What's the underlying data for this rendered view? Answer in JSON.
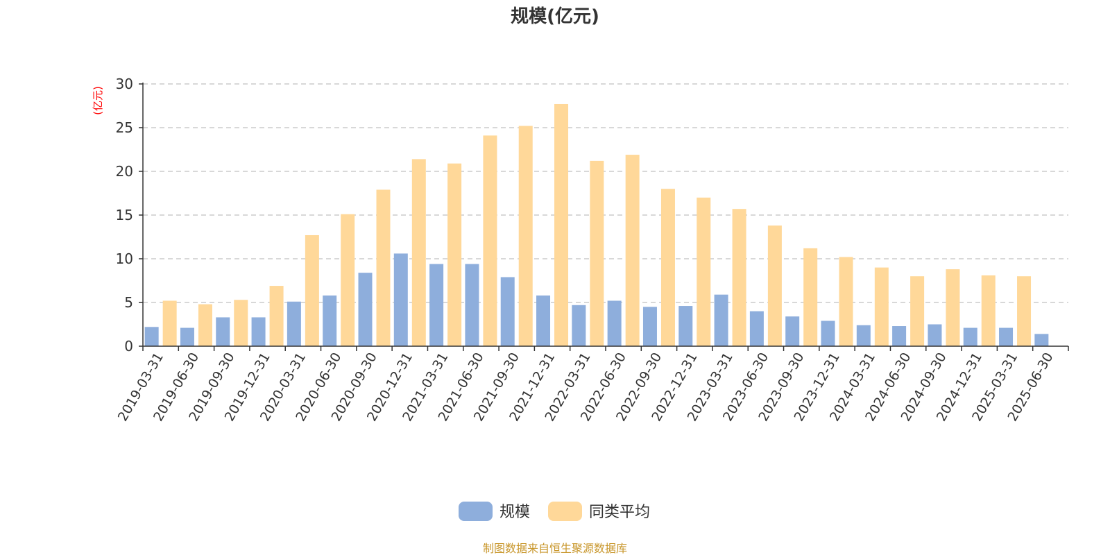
{
  "chart_data": {
    "type": "bar",
    "title": "规模(亿元)",
    "ylabel": "(亿元)",
    "ylim": [
      0,
      30
    ],
    "yticks": [
      0,
      5,
      10,
      15,
      20,
      25,
      30
    ],
    "grid": true,
    "legend_position": "bottom-center",
    "categories": [
      "2019-03-31",
      "2019-06-30",
      "2019-09-30",
      "2019-12-31",
      "2020-03-31",
      "2020-06-30",
      "2020-09-30",
      "2020-12-31",
      "2021-03-31",
      "2021-06-30",
      "2021-09-30",
      "2021-12-31",
      "2022-03-31",
      "2022-06-30",
      "2022-09-30",
      "2022-12-31",
      "2023-03-31",
      "2023-06-30",
      "2023-09-30",
      "2023-12-31",
      "2024-03-31",
      "2024-06-30",
      "2024-09-30",
      "2024-12-31",
      "2025-03-31",
      "2025-06-30"
    ],
    "series": [
      {
        "name": "规模",
        "color": "#8eaedc",
        "values": [
          2.2,
          2.1,
          3.3,
          3.3,
          5.1,
          5.8,
          8.4,
          10.6,
          9.4,
          9.4,
          7.9,
          5.8,
          4.7,
          5.2,
          4.5,
          4.6,
          5.9,
          4.0,
          3.4,
          2.9,
          2.4,
          2.3,
          2.5,
          2.1,
          2.1,
          1.4
        ]
      },
      {
        "name": "同类平均",
        "color": "#ffd899",
        "values": [
          5.2,
          4.8,
          5.3,
          6.9,
          12.7,
          15.1,
          17.9,
          21.4,
          20.9,
          24.1,
          25.2,
          27.7,
          21.2,
          21.9,
          18.0,
          17.0,
          15.7,
          13.8,
          11.2,
          10.2,
          9.0,
          8.0,
          8.8,
          8.1,
          8.0,
          null
        ]
      }
    ]
  },
  "footer": {
    "source": "制图数据来自恒生聚源数据库"
  }
}
